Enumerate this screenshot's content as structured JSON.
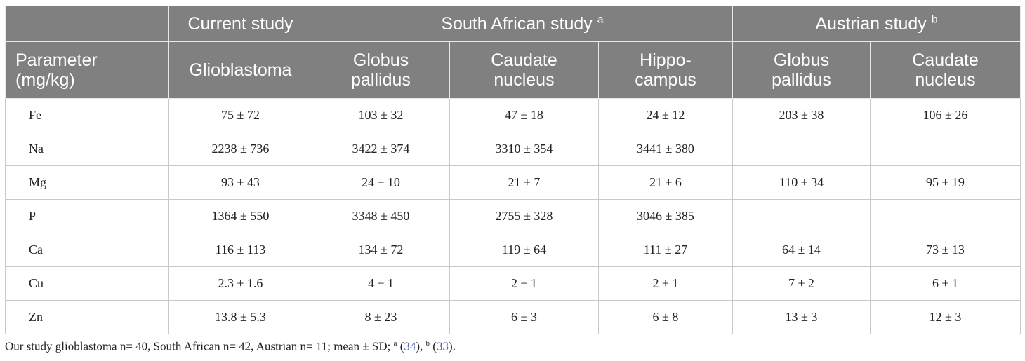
{
  "header": {
    "row1": [
      "",
      "Current study",
      "South African study",
      "Austrian study"
    ],
    "row1_sup": [
      "",
      "",
      "a",
      "b"
    ],
    "param_label": [
      "Parameter",
      "(mg/kg)"
    ],
    "row2": [
      [
        "Glioblastoma"
      ],
      [
        "Globus",
        "pallidus"
      ],
      [
        "Caudate",
        "nucleus"
      ],
      [
        "Hippo-",
        "campus"
      ],
      [
        "Globus",
        "pallidus"
      ],
      [
        "Caudate",
        "nucleus"
      ]
    ]
  },
  "rows": [
    [
      "Fe",
      "75 ± 72",
      "103 ± 32",
      "47 ± 18",
      "24 ± 12",
      "203 ± 38",
      "106 ± 26"
    ],
    [
      "Na",
      "2238 ± 736",
      "3422 ± 374",
      "3310 ± 354",
      "3441 ± 380",
      "",
      ""
    ],
    [
      "Mg",
      "93 ± 43",
      "24 ± 10",
      "21 ± 7",
      "21 ± 6",
      "110 ± 34",
      "95 ± 19"
    ],
    [
      "P",
      "1364 ± 550",
      "3348 ± 450",
      "2755 ± 328",
      "3046 ± 385",
      "",
      ""
    ],
    [
      "Ca",
      "116 ± 113",
      "134 ± 72",
      "119 ± 64",
      "111 ± 27",
      "64 ± 14",
      "73 ± 13"
    ],
    [
      "Cu",
      "2.3 ± 1.6",
      "4 ± 1",
      "2 ± 1",
      "2 ± 1",
      "7 ± 2",
      "6 ± 1"
    ],
    [
      "Zn",
      "13.8 ± 5.3",
      "8 ± 23",
      "6 ± 3",
      "6 ± 8",
      "13 ± 3",
      "12 ± 3"
    ]
  ],
  "footnote": {
    "text": "Our study glioblastoma n= 40, South African n= 42, Austrian n= 11; mean ± SD;",
    "sup_a": "a",
    "ref_a": "34",
    "sup_b": "b",
    "ref_b": "33"
  }
}
